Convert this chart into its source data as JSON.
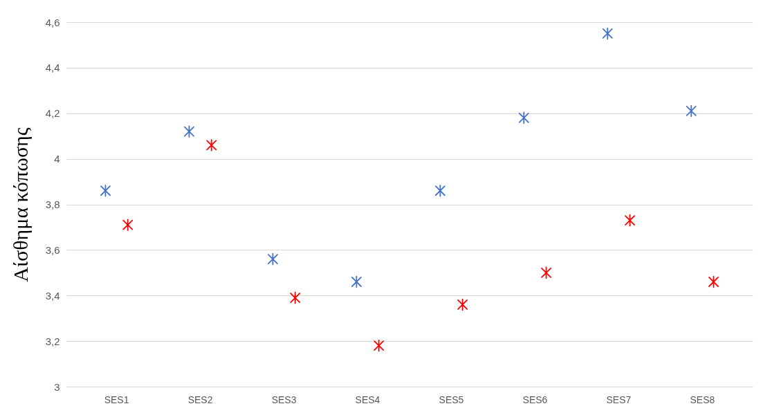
{
  "chart_data": {
    "type": "scatter",
    "ylabel": "Αίσθημα κόπωσης",
    "categories": [
      "SES1",
      "SES2",
      "SES3",
      "SES4",
      "SES5",
      "SES6",
      "SES7",
      "SES8"
    ],
    "series": [
      {
        "color": "#4472c4",
        "values": [
          3.86,
          4.12,
          3.56,
          3.46,
          3.86,
          4.18,
          4.55,
          4.21
        ]
      },
      {
        "color": "#ff0000",
        "values": [
          3.71,
          4.06,
          3.39,
          3.18,
          3.36,
          3.5,
          3.73,
          3.46
        ]
      }
    ],
    "ylim": [
      3,
      4.6
    ],
    "yticks": [
      3,
      {
        "value": 3.2,
        "label": "3,2"
      },
      {
        "value": 3.4,
        "label": "3,4"
      },
      {
        "value": 3.6,
        "label": "3,6"
      },
      {
        "value": 3.8,
        "label": "3,8"
      },
      4,
      {
        "value": 4.2,
        "label": "4,2"
      },
      {
        "value": 4.4,
        "label": "4,4"
      },
      {
        "value": 4.6,
        "label": "4,6"
      }
    ],
    "grid": "y",
    "marker": "cross",
    "legend": false
  }
}
